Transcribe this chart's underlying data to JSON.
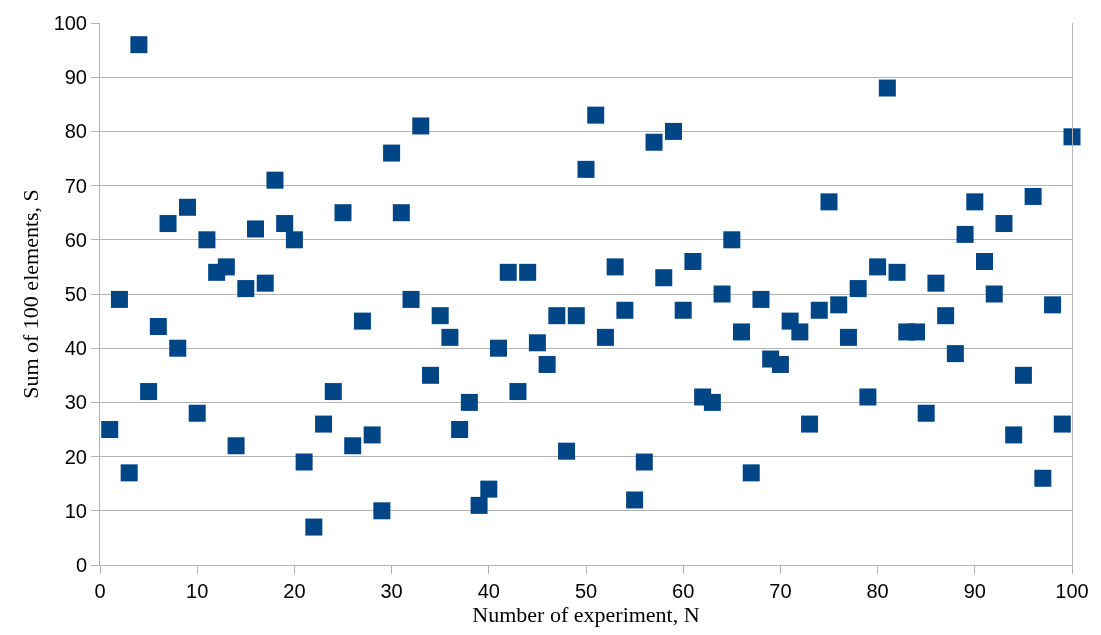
{
  "chart_data": {
    "type": "scatter",
    "xlabel": "Number of experiment, N",
    "ylabel": "Sum of 100 elements, S",
    "x": [
      1,
      2,
      3,
      4,
      5,
      6,
      7,
      8,
      9,
      10,
      11,
      12,
      13,
      14,
      15,
      16,
      17,
      18,
      19,
      20,
      21,
      22,
      23,
      24,
      25,
      26,
      27,
      28,
      29,
      30,
      31,
      32,
      33,
      34,
      35,
      36,
      37,
      38,
      39,
      40,
      41,
      42,
      43,
      44,
      45,
      46,
      47,
      48,
      49,
      50,
      51,
      52,
      53,
      54,
      55,
      56,
      57,
      58,
      59,
      60,
      61,
      62,
      63,
      64,
      65,
      66,
      67,
      68,
      69,
      70,
      71,
      72,
      73,
      74,
      75,
      76,
      77,
      78,
      79,
      80,
      81,
      82,
      83,
      84,
      85,
      86,
      87,
      88,
      89,
      90,
      91,
      92,
      93,
      94,
      95,
      96,
      97,
      98,
      99,
      100
    ],
    "values": [
      25,
      49,
      17,
      96,
      32,
      44,
      63,
      40,
      66,
      28,
      60,
      54,
      55,
      22,
      51,
      62,
      52,
      71,
      63,
      60,
      19,
      7,
      26,
      32,
      65,
      22,
      45,
      24,
      10,
      76,
      65,
      49,
      81,
      35,
      46,
      42,
      25,
      30,
      11,
      14,
      40,
      54,
      32,
      54,
      41,
      37,
      46,
      21,
      46,
      73,
      83,
      42,
      55,
      47,
      12,
      19,
      78,
      53,
      80,
      47,
      56,
      31,
      30,
      50,
      60,
      43,
      17,
      49,
      38,
      37,
      45,
      43,
      26,
      47,
      67,
      48,
      42,
      51,
      31,
      55,
      88,
      54,
      43,
      43,
      28,
      52,
      46,
      39,
      61,
      67,
      56,
      50,
      63,
      24,
      35,
      68,
      16,
      48,
      26,
      79
    ],
    "color": "#004586",
    "marker": "square",
    "xlim": [
      0,
      100
    ],
    "xticks": [
      0,
      10,
      20,
      30,
      40,
      50,
      60,
      70,
      80,
      90,
      100
    ],
    "ylim": [
      0,
      100
    ],
    "yticks": [
      0,
      10,
      20,
      30,
      40,
      50,
      60,
      70,
      80,
      90,
      100
    ],
    "grid": "y"
  }
}
